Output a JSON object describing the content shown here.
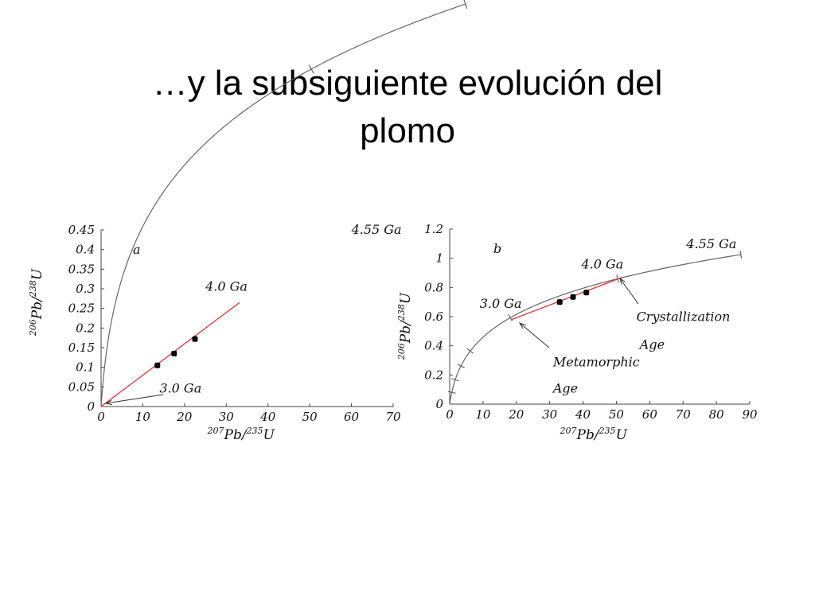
{
  "title": {
    "line1": "…y la  subsiguiente evolución del",
    "line2": "plomo"
  },
  "colors": {
    "concordia": "#666666",
    "discordia": "#e0353a",
    "points": "#000000",
    "text": "#111111"
  },
  "chart_data": [
    {
      "type": "line",
      "panel_label": "a",
      "xlabel": {
        "sup1": "207",
        "el1": "Pb/",
        "sup2": "235",
        "el2": "U"
      },
      "ylabel": {
        "sup1": "206",
        "el1": "Pb/",
        "sup2": "238",
        "el2": "U"
      },
      "xlim": [
        0,
        70
      ],
      "ylim": [
        0,
        0.45
      ],
      "x_ticks": [
        0,
        10,
        20,
        30,
        40,
        50,
        60,
        70
      ],
      "x_tick_labels": [
        "0",
        "10",
        "20",
        "30",
        "40",
        "50",
        "60",
        "70"
      ],
      "y_ticks": [
        0,
        0.05,
        0.1,
        0.15,
        0.2,
        0.25,
        0.3,
        0.35,
        0.4,
        0.45
      ],
      "y_tick_labels": [
        "0",
        "0.05",
        "0.1",
        "0.15",
        "0.2",
        "0.25",
        "0.3",
        "0.35",
        "0.4",
        "0.45"
      ],
      "concordia_max_age_ga": 4.55,
      "age_marks_ga": [
        4.0,
        4.55
      ],
      "discordia": {
        "x": [
          0,
          33.2
        ],
        "y": [
          0,
          0.265
        ]
      },
      "series": [
        {
          "x": [
            13.5,
            17.5,
            22.5
          ],
          "y": [
            0.105,
            0.135,
            0.172
          ]
        }
      ],
      "annotations": [
        {
          "text": "4.55 Ga",
          "x": 60,
          "y": 0.44
        },
        {
          "text": "4.0 Ga",
          "x": 25,
          "y": 0.295
        },
        {
          "text": "3.0 Ga",
          "x": 14,
          "y": 0.035
        }
      ]
    },
    {
      "type": "line",
      "panel_label": "b",
      "xlabel": {
        "sup1": "207",
        "el1": "Pb/",
        "sup2": "235",
        "el2": "U"
      },
      "ylabel": {
        "sup1": "206",
        "el1": "Pb/",
        "sup2": "238",
        "el2": "U"
      },
      "xlim": [
        0,
        90
      ],
      "ylim": [
        0,
        1.2
      ],
      "x_ticks": [
        0,
        10,
        20,
        30,
        40,
        50,
        60,
        70,
        80,
        90
      ],
      "x_tick_labels": [
        "0",
        "10",
        "20",
        "30",
        "40",
        "50",
        "60",
        "70",
        "80",
        "90"
      ],
      "y_ticks": [
        0,
        0.2,
        0.4,
        0.6,
        0.8,
        1.0,
        1.2
      ],
      "y_tick_labels": [
        "0",
        "0.2",
        "0.4",
        "0.6",
        "0.8",
        "1",
        "1.2"
      ],
      "concordia_max_age_ga": 4.55,
      "age_marks_ga": [
        0.5,
        1.0,
        1.5,
        2.0,
        3.0,
        4.0,
        4.55
      ],
      "discordia": {
        "x": [
          18.6,
          51.8
        ],
        "y": [
          0.58,
          0.87
        ]
      },
      "series": [
        {
          "x": [
            33,
            37,
            41
          ],
          "y": [
            0.7,
            0.735,
            0.765
          ]
        }
      ],
      "annotations": [
        {
          "text": "4.55 Ga",
          "x": 71,
          "y": 1.07
        },
        {
          "text": "4.0 Ga",
          "x": 39.5,
          "y": 0.93
        },
        {
          "text": "3.0 Ga",
          "x": 9,
          "y": 0.66
        },
        {
          "text": "Crystallization",
          "x": 56,
          "y": 0.57
        },
        {
          "text": "Age",
          "x": 57,
          "y": 0.38
        },
        {
          "text": "Metamorphic",
          "x": 31,
          "y": 0.26
        },
        {
          "text": "Age",
          "x": 31,
          "y": 0.08
        }
      ]
    }
  ]
}
